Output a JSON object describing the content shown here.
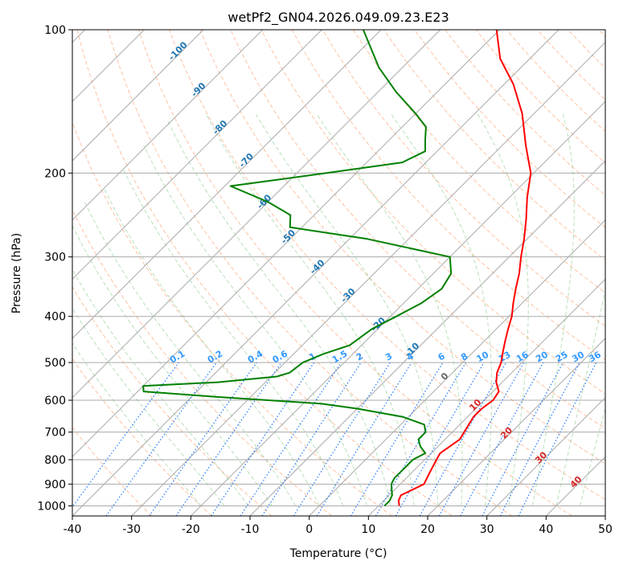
{
  "chart_data": {
    "type": "line",
    "title": "wetPf2_GN04.2026.049.09.23.E23",
    "xlabel": "Temperature (°C)",
    "ylabel": "Pressure (hPa)",
    "xlim": [
      -40,
      50
    ],
    "ylim": [
      1050,
      100
    ],
    "y_scale": "log",
    "grid": true,
    "x_ticks": [
      -40,
      -30,
      -20,
      -10,
      0,
      10,
      20,
      30,
      40,
      50
    ],
    "y_ticks": [
      100,
      200,
      300,
      400,
      500,
      600,
      700,
      800,
      900,
      1000
    ],
    "skew_degrees": 45,
    "colors": {
      "temperature": "#ff0000",
      "dewpoint": "#008000",
      "isotherm_grid": "#aaaaaa",
      "dry_adiabat": "#ff9966",
      "moist_adiabat": "#66bb66",
      "mixing_ratio": "#1f77ff",
      "label_blue": "#1f77b4",
      "label_red": "#d62728"
    },
    "series": [
      {
        "name": "",
        "role": "temperature",
        "color": "#ff0000",
        "points": [
          [
            13.5,
            1000
          ],
          [
            12.5,
            975
          ],
          [
            12,
            950
          ],
          [
            13,
            925
          ],
          [
            14,
            900
          ],
          [
            13.5,
            875
          ],
          [
            13,
            850
          ],
          [
            12.5,
            825
          ],
          [
            12,
            800
          ],
          [
            11.5,
            775
          ],
          [
            12,
            750
          ],
          [
            12.5,
            725
          ],
          [
            12,
            700
          ],
          [
            11.5,
            675
          ],
          [
            11,
            650
          ],
          [
            11,
            625
          ],
          [
            11.5,
            600
          ],
          [
            11,
            575
          ],
          [
            9,
            550
          ],
          [
            7.5,
            525
          ],
          [
            6.5,
            500
          ],
          [
            5,
            475
          ],
          [
            3.5,
            450
          ],
          [
            2,
            425
          ],
          [
            0.5,
            400
          ],
          [
            -1.5,
            375
          ],
          [
            -3.5,
            350
          ],
          [
            -5.5,
            325
          ],
          [
            -8,
            300
          ],
          [
            -10.5,
            275
          ],
          [
            -13.5,
            250
          ],
          [
            -17,
            225
          ],
          [
            -20.5,
            200
          ],
          [
            -26,
            175
          ],
          [
            -32,
            150
          ],
          [
            -38.5,
            130
          ],
          [
            -45,
            115
          ],
          [
            -50.5,
            100
          ]
        ]
      },
      {
        "name": "",
        "role": "dewpoint",
        "color": "#008000",
        "points": [
          [
            11,
            1000
          ],
          [
            11,
            975
          ],
          [
            10.5,
            950
          ],
          [
            9.5,
            925
          ],
          [
            8.5,
            900
          ],
          [
            8,
            875
          ],
          [
            8,
            850
          ],
          [
            8,
            825
          ],
          [
            8,
            800
          ],
          [
            9,
            775
          ],
          [
            7,
            750
          ],
          [
            5.5,
            725
          ],
          [
            5.5,
            700
          ],
          [
            4,
            675
          ],
          [
            -1,
            650
          ],
          [
            -10,
            625
          ],
          [
            -17,
            610
          ],
          [
            -36,
            590
          ],
          [
            -49,
            575
          ],
          [
            -50,
            560
          ],
          [
            -38,
            550
          ],
          [
            -29,
            535
          ],
          [
            -27.5,
            525
          ],
          [
            -27,
            500
          ],
          [
            -25,
            480
          ],
          [
            -22,
            460
          ],
          [
            -21,
            425
          ],
          [
            -19,
            400
          ],
          [
            -17,
            375
          ],
          [
            -16,
            350
          ],
          [
            -17,
            325
          ],
          [
            -20,
            300
          ],
          [
            -37,
            275
          ],
          [
            -52,
            260
          ],
          [
            -54,
            245
          ],
          [
            -60,
            230
          ],
          [
            -69,
            213
          ],
          [
            -55,
            200
          ],
          [
            -44,
            190
          ],
          [
            -42,
            180
          ],
          [
            -44,
            170
          ],
          [
            -46,
            160
          ],
          [
            -50,
            150
          ],
          [
            -57,
            135
          ],
          [
            -64,
            120
          ],
          [
            -73,
            100
          ]
        ]
      }
    ],
    "mixing_ratio_labels": [
      "0.1",
      "0.2",
      "0.4",
      "0.6",
      "1",
      "1.5",
      "2",
      "3",
      "4",
      "6",
      "8",
      "10",
      "13",
      "16",
      "20",
      "25",
      "30",
      "36"
    ],
    "mixing_ratio_values": [
      0.1,
      0.2,
      0.4,
      0.6,
      1,
      1.5,
      2,
      3,
      4,
      6,
      8,
      10,
      13,
      16,
      20,
      25,
      30,
      36
    ],
    "isotherm_labels_blue": [
      "-100",
      "-90",
      "-80",
      "-70",
      "-60",
      "-50",
      "-40",
      "-30",
      "-20",
      "-10"
    ],
    "isotherm_labels_red": [
      "10",
      "20",
      "30",
      "40"
    ],
    "isotherm_label_zero": "0"
  }
}
